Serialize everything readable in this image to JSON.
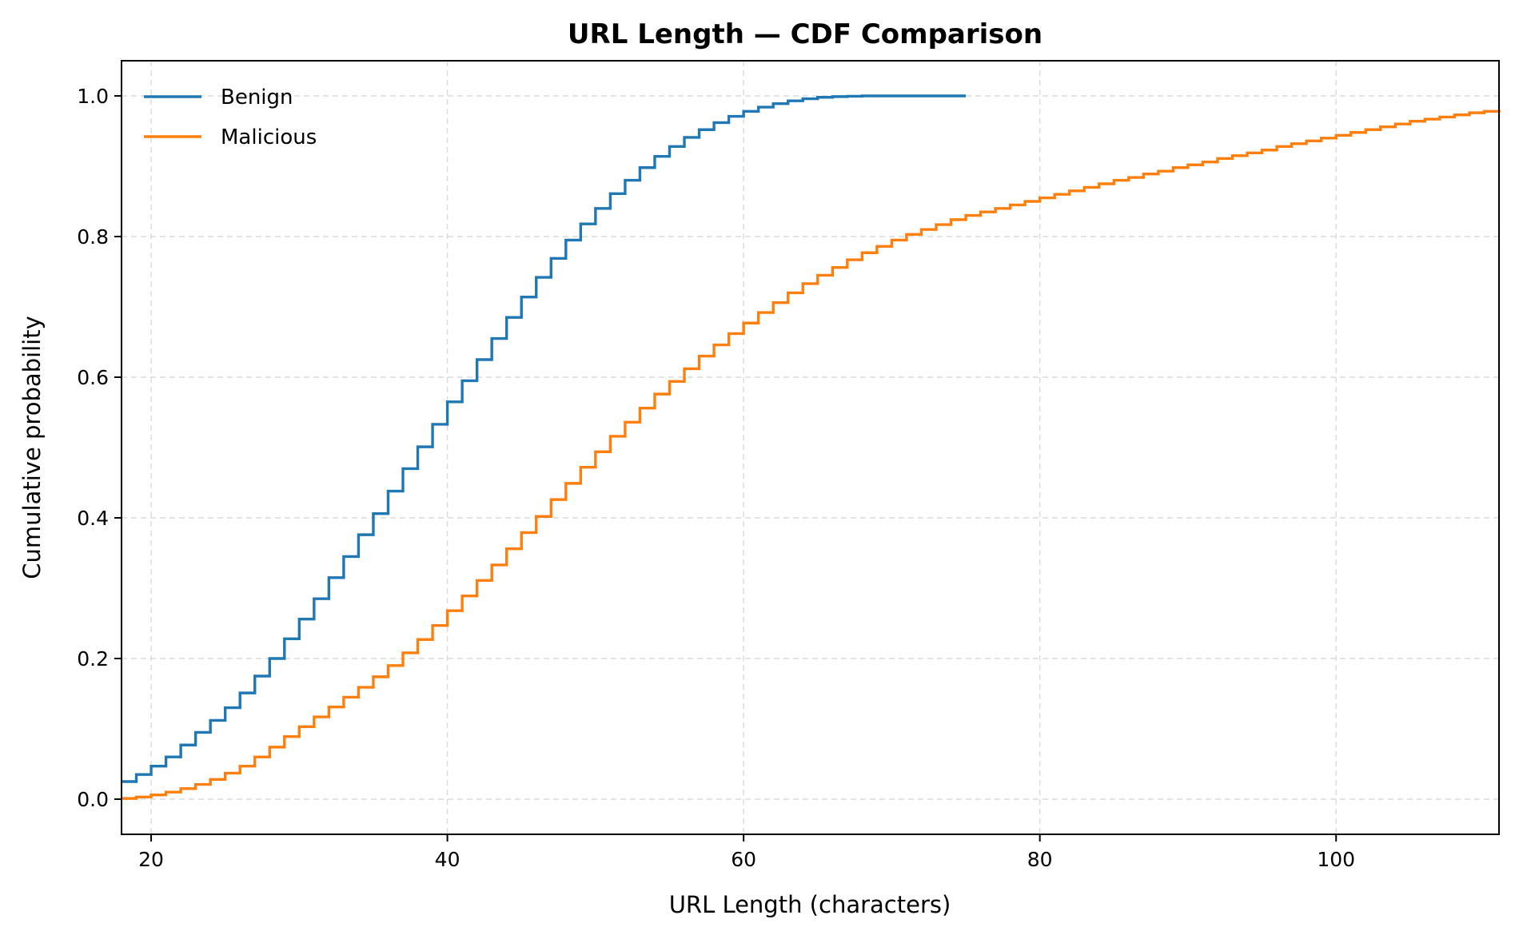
{
  "chart_data": {
    "type": "line",
    "step": true,
    "title": "URL Length — CDF Comparison",
    "xlabel": "URL Length (characters)",
    "ylabel": "Cumulative probability",
    "xlim": [
      18,
      111
    ],
    "ylim": [
      -0.05,
      1.05
    ],
    "xticks": [
      20,
      40,
      60,
      80,
      100
    ],
    "yticks": [
      0.0,
      0.2,
      0.4,
      0.6,
      0.8,
      1.0
    ],
    "xtick_labels": [
      "20",
      "40",
      "60",
      "80",
      "100"
    ],
    "ytick_labels": [
      "0.0",
      "0.2",
      "0.4",
      "0.6",
      "0.8",
      "1.0"
    ],
    "grid": true,
    "legend_position": "top-left",
    "series": [
      {
        "name": "Benign",
        "color": "#1f77b4",
        "x": [
          18,
          19,
          20,
          21,
          22,
          23,
          24,
          25,
          26,
          27,
          28,
          29,
          30,
          31,
          32,
          33,
          34,
          35,
          36,
          37,
          38,
          39,
          40,
          41,
          42,
          43,
          44,
          45,
          46,
          47,
          48,
          49,
          50,
          51,
          52,
          53,
          54,
          55,
          56,
          57,
          58,
          59,
          60,
          61,
          62,
          63,
          64,
          65,
          66,
          67,
          68,
          69,
          70,
          71,
          72,
          73,
          74,
          75
        ],
        "values": [
          0.025,
          0.035,
          0.047,
          0.06,
          0.077,
          0.095,
          0.112,
          0.13,
          0.151,
          0.175,
          0.2,
          0.228,
          0.256,
          0.285,
          0.315,
          0.345,
          0.376,
          0.406,
          0.438,
          0.47,
          0.501,
          0.533,
          0.565,
          0.595,
          0.625,
          0.655,
          0.685,
          0.714,
          0.742,
          0.769,
          0.795,
          0.818,
          0.84,
          0.861,
          0.88,
          0.898,
          0.914,
          0.928,
          0.941,
          0.952,
          0.962,
          0.971,
          0.978,
          0.984,
          0.989,
          0.993,
          0.996,
          0.998,
          0.999,
          0.9995,
          1.0,
          1.0,
          1.0,
          1.0,
          1.0,
          1.0,
          1.0,
          1.0
        ]
      },
      {
        "name": "Malicious",
        "color": "#ff7f0e",
        "x": [
          18,
          19,
          20,
          21,
          22,
          23,
          24,
          25,
          26,
          27,
          28,
          29,
          30,
          31,
          32,
          33,
          34,
          35,
          36,
          37,
          38,
          39,
          40,
          41,
          42,
          43,
          44,
          45,
          46,
          47,
          48,
          49,
          50,
          51,
          52,
          53,
          54,
          55,
          56,
          57,
          58,
          59,
          60,
          61,
          62,
          63,
          64,
          65,
          66,
          67,
          68,
          69,
          70,
          71,
          72,
          73,
          74,
          75,
          76,
          77,
          78,
          79,
          80,
          81,
          82,
          83,
          84,
          85,
          86,
          87,
          88,
          89,
          90,
          91,
          92,
          93,
          94,
          95,
          96,
          97,
          98,
          99,
          100,
          101,
          102,
          103,
          104,
          105,
          106,
          107,
          108,
          109,
          110,
          111
        ],
        "values": [
          0.001,
          0.003,
          0.006,
          0.01,
          0.015,
          0.021,
          0.028,
          0.037,
          0.047,
          0.06,
          0.074,
          0.089,
          0.103,
          0.117,
          0.131,
          0.145,
          0.159,
          0.174,
          0.19,
          0.208,
          0.227,
          0.247,
          0.268,
          0.289,
          0.311,
          0.333,
          0.356,
          0.379,
          0.402,
          0.426,
          0.449,
          0.472,
          0.494,
          0.516,
          0.536,
          0.556,
          0.576,
          0.594,
          0.612,
          0.63,
          0.646,
          0.662,
          0.677,
          0.692,
          0.706,
          0.72,
          0.733,
          0.745,
          0.756,
          0.767,
          0.777,
          0.786,
          0.795,
          0.803,
          0.81,
          0.817,
          0.824,
          0.83,
          0.835,
          0.84,
          0.845,
          0.85,
          0.855,
          0.86,
          0.865,
          0.87,
          0.875,
          0.88,
          0.884,
          0.889,
          0.893,
          0.898,
          0.902,
          0.906,
          0.911,
          0.915,
          0.919,
          0.923,
          0.928,
          0.932,
          0.936,
          0.94,
          0.944,
          0.948,
          0.952,
          0.956,
          0.96,
          0.964,
          0.967,
          0.97,
          0.973,
          0.976,
          0.978,
          0.98
        ]
      }
    ]
  }
}
